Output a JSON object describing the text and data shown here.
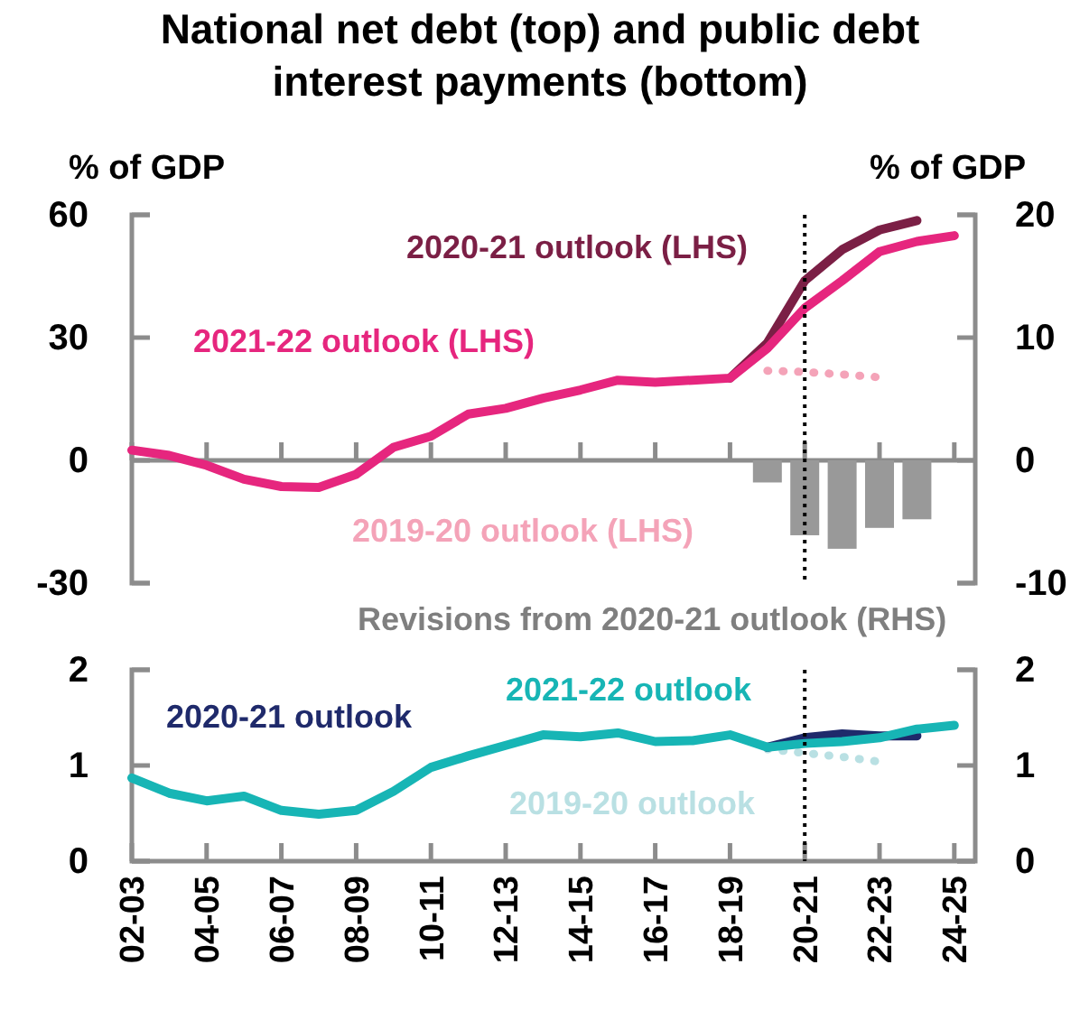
{
  "chart_data": [
    {
      "type": "line",
      "title": "National net debt (top) and public debt interest payments (bottom)",
      "ylabel": "% of GDP",
      "y2label": "% of GDP",
      "categories": [
        "02-03",
        null,
        "04-05",
        null,
        "06-07",
        null,
        "08-09",
        null,
        "10-11",
        null,
        "12-13",
        null,
        "14-15",
        null,
        "16-17",
        null,
        "18-19",
        null,
        "20-21",
        null,
        "22-23",
        null,
        "24-25"
      ],
      "series": [
        {
          "name": "Revisions from 2020-21 outlook (RHS)",
          "type": "bar",
          "axis": "y2",
          "color": "#999999",
          "values": [
            null,
            null,
            null,
            null,
            null,
            null,
            null,
            null,
            null,
            null,
            null,
            null,
            null,
            null,
            null,
            null,
            null,
            -1.8,
            -6.1,
            -7.2,
            -5.5,
            -4.8,
            null
          ]
        },
        {
          "name": "2019-20 outlook (LHS)",
          "color": "#f4a3b8",
          "line_style": "dotted",
          "values": [
            null,
            null,
            null,
            null,
            null,
            null,
            null,
            null,
            null,
            null,
            null,
            null,
            null,
            null,
            null,
            null,
            null,
            21.9,
            21.6,
            21.0,
            20.3,
            null,
            null
          ]
        },
        {
          "name": "2020-21 outlook (LHS)",
          "color": "#7b1f45",
          "line_style": "solid",
          "values": [
            null,
            null,
            null,
            null,
            null,
            null,
            null,
            null,
            null,
            null,
            null,
            null,
            null,
            null,
            null,
            null,
            20.1,
            28.7,
            43.9,
            51.5,
            56.3,
            58.6,
            null
          ]
        },
        {
          "name": "2021-22 outlook (LHS)",
          "color": "#e6267e",
          "line_style": "solid",
          "values": [
            2.5,
            1.2,
            -1.2,
            -4.6,
            -6.4,
            -6.6,
            -3.4,
            3.2,
            5.9,
            11.3,
            12.7,
            15.2,
            17.2,
            19.6,
            19.1,
            19.6,
            20.1,
            27.4,
            37.2,
            43.9,
            51.0,
            53.5,
            54.9
          ]
        }
      ],
      "ylim": [
        -30,
        60
      ],
      "yticks": [
        -30,
        0,
        30,
        60
      ],
      "y2lim": [
        -10,
        20
      ],
      "y2ticks": [
        -10,
        0,
        10,
        20
      ],
      "ref_lines": [
        {
          "axis": "x",
          "value": "20-21",
          "color": "#000000",
          "line_style": "dotted"
        }
      ],
      "tick_labels": "y",
      "grid": false,
      "legend": false,
      "marker": "none"
    },
    {
      "type": "line",
      "categories": [
        "02-03",
        null,
        "04-05",
        null,
        "06-07",
        null,
        "08-09",
        null,
        "10-11",
        null,
        "12-13",
        null,
        "14-15",
        null,
        "16-17",
        null,
        "18-19",
        null,
        "20-21",
        null,
        "22-23",
        null,
        "24-25"
      ],
      "series": [
        {
          "name": "2019-20 outlook",
          "color": "#b9e0e3",
          "line_style": "dotted",
          "values": [
            null,
            null,
            null,
            null,
            null,
            null,
            null,
            null,
            null,
            null,
            null,
            null,
            null,
            null,
            null,
            null,
            null,
            1.17,
            1.13,
            1.09,
            1.04,
            null,
            null
          ]
        },
        {
          "name": "2020-21 outlook",
          "color": "#1f2a6b",
          "line_style": "solid",
          "values": [
            null,
            null,
            null,
            null,
            null,
            null,
            null,
            null,
            null,
            null,
            null,
            null,
            null,
            null,
            null,
            null,
            null,
            1.19,
            1.29,
            1.33,
            1.31,
            1.31,
            null
          ]
        },
        {
          "name": "2021-22 outlook",
          "color": "#17b5b5",
          "line_style": "solid",
          "values": [
            0.87,
            0.71,
            0.63,
            0.68,
            0.53,
            0.49,
            0.53,
            0.73,
            0.98,
            1.1,
            1.21,
            1.32,
            1.3,
            1.34,
            1.25,
            1.26,
            1.32,
            1.19,
            1.23,
            1.25,
            1.29,
            1.38,
            1.42
          ]
        }
      ],
      "ylim": [
        0,
        2
      ],
      "yticks": [
        0,
        1,
        2
      ],
      "y2lim": [
        0,
        2
      ],
      "y2ticks": [
        0,
        1,
        2
      ],
      "ref_lines": [
        {
          "axis": "x",
          "value": "20-21",
          "color": "#000000",
          "line_style": "dotted"
        }
      ],
      "grid": false,
      "legend": false,
      "marker": "none"
    }
  ]
}
